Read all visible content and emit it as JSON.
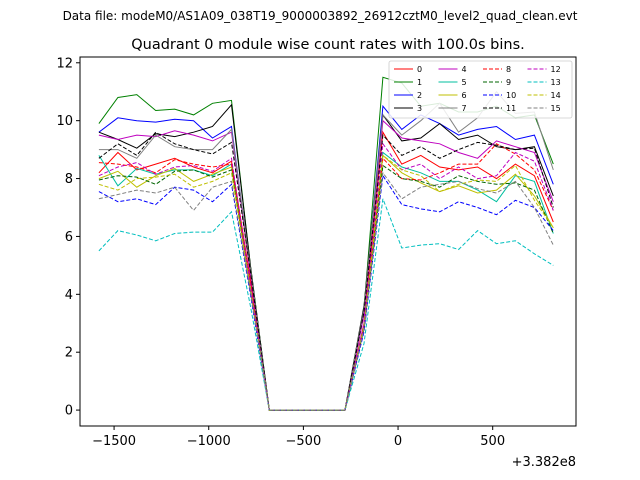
{
  "chart_data": {
    "type": "line",
    "header_text": "Data file: modeM0/AS1A09_038T19_9000003892_26912cztM0_level2_quad_clean.evt",
    "title": "Quadrant 0 module wise count rates with 100.0s bins.",
    "xlabel": "",
    "ylabel": "",
    "offset_text": "+3.382e8",
    "xlim": [
      -1680,
      940
    ],
    "ylim": [
      -0.55,
      12.2
    ],
    "xticks": [
      -1500,
      -1000,
      -500,
      0,
      500
    ],
    "xtick_labels": [
      "−1500",
      "−1000",
      "−500",
      "0",
      "500"
    ],
    "yticks": [
      0,
      2,
      4,
      6,
      8,
      10,
      12
    ],
    "ytick_labels": [
      "0",
      "2",
      "4",
      "6",
      "8",
      "10",
      "12"
    ],
    "legend_position": "upper right",
    "x": [
      -1580,
      -1480,
      -1380,
      -1280,
      -1180,
      -1080,
      -980,
      -880,
      -780,
      -680,
      -580,
      -480,
      -380,
      -280,
      -180,
      -80,
      20,
      120,
      220,
      320,
      420,
      520,
      620,
      720,
      820
    ],
    "series": [
      {
        "name": "0",
        "color": "#ff0000",
        "dash": "solid",
        "values": [
          8.2,
          8.9,
          8.3,
          8.5,
          8.7,
          8.4,
          8.2,
          8.6,
          4.5,
          0.0,
          0.0,
          0.0,
          0.0,
          0.0,
          3.0,
          9.6,
          8.5,
          8.8,
          8.4,
          8.3,
          8.4,
          8.0,
          8.5,
          8.1,
          6.5
        ]
      },
      {
        "name": "1",
        "color": "#008000",
        "dash": "solid",
        "values": [
          9.9,
          10.8,
          10.9,
          10.35,
          10.4,
          10.2,
          10.6,
          10.7,
          5.0,
          0.0,
          0.0,
          0.0,
          0.0,
          0.0,
          3.5,
          11.5,
          11.3,
          10.5,
          10.6,
          10.3,
          10.3,
          10.5,
          10.1,
          10.2,
          8.5
        ]
      },
      {
        "name": "2",
        "color": "#0000ff",
        "dash": "solid",
        "values": [
          9.6,
          10.1,
          10.0,
          9.95,
          10.05,
          10.0,
          9.4,
          9.8,
          4.8,
          0.0,
          0.0,
          0.0,
          0.0,
          0.0,
          3.4,
          10.5,
          9.7,
          10.2,
          9.9,
          9.5,
          9.7,
          9.8,
          9.35,
          9.5,
          7.8
        ]
      },
      {
        "name": "3",
        "color": "#000000",
        "dash": "solid",
        "values": [
          9.6,
          9.35,
          9.05,
          9.55,
          9.45,
          9.6,
          9.8,
          10.55,
          5.0,
          0.0,
          0.0,
          0.0,
          0.0,
          0.0,
          3.6,
          10.2,
          9.3,
          9.4,
          9.9,
          9.35,
          9.5,
          9.1,
          9.0,
          9.1,
          7.4
        ]
      },
      {
        "name": "4",
        "color": "#bf00bf",
        "dash": "solid",
        "values": [
          9.5,
          9.35,
          9.5,
          9.45,
          9.65,
          9.5,
          9.3,
          9.6,
          4.7,
          0.0,
          0.0,
          0.0,
          0.0,
          0.0,
          3.3,
          10.0,
          9.4,
          9.3,
          9.2,
          8.9,
          8.7,
          9.3,
          9.1,
          8.9,
          7.2
        ]
      },
      {
        "name": "5",
        "color": "#00bf9f",
        "dash": "solid",
        "values": [
          8.8,
          7.75,
          8.35,
          8.15,
          8.3,
          8.3,
          8.1,
          8.5,
          4.2,
          0.0,
          0.0,
          0.0,
          0.0,
          0.0,
          2.9,
          8.9,
          8.4,
          8.2,
          7.9,
          7.9,
          7.6,
          7.2,
          8.1,
          7.9,
          6.1
        ]
      },
      {
        "name": "6",
        "color": "#bfbf00",
        "dash": "solid",
        "values": [
          8.0,
          8.25,
          7.7,
          8.1,
          8.35,
          7.9,
          8.15,
          8.4,
          4.1,
          0.0,
          0.0,
          0.0,
          0.0,
          0.0,
          2.8,
          8.8,
          8.2,
          7.85,
          7.55,
          7.75,
          7.5,
          7.6,
          8.15,
          7.4,
          6.3
        ]
      },
      {
        "name": "7",
        "color": "#808080",
        "dash": "solid",
        "values": [
          9.0,
          9.0,
          8.7,
          9.5,
          9.1,
          9.0,
          9.0,
          9.7,
          4.9,
          0.0,
          0.0,
          0.0,
          0.0,
          0.0,
          3.5,
          10.2,
          9.5,
          10.0,
          10.6,
          9.6,
          10.1,
          11.0,
          10.25,
          10.3,
          8.3
        ]
      },
      {
        "name": "8",
        "color": "#ff0000",
        "dash": "dashed",
        "values": [
          8.55,
          8.5,
          8.4,
          8.2,
          8.65,
          8.5,
          8.4,
          8.5,
          4.3,
          0.0,
          0.0,
          0.0,
          0.0,
          0.0,
          2.9,
          8.7,
          8.0,
          7.95,
          8.2,
          8.5,
          8.5,
          9.2,
          8.85,
          8.3,
          6.9
        ]
      },
      {
        "name": "9",
        "color": "#006400",
        "dash": "dashed",
        "values": [
          7.95,
          8.1,
          8.05,
          7.8,
          8.25,
          8.3,
          8.05,
          8.3,
          4.2,
          0.0,
          0.0,
          0.0,
          0.0,
          0.0,
          2.8,
          8.45,
          8.0,
          7.9,
          7.7,
          8.1,
          7.9,
          7.8,
          7.85,
          7.6,
          6.1
        ]
      },
      {
        "name": "10",
        "color": "#0000ff",
        "dash": "dashed",
        "values": [
          7.55,
          7.2,
          7.3,
          7.1,
          7.7,
          7.6,
          7.2,
          7.8,
          4.0,
          0.0,
          0.0,
          0.0,
          0.0,
          0.0,
          2.7,
          8.1,
          7.1,
          6.95,
          6.85,
          7.2,
          7.0,
          6.75,
          7.25,
          7.0,
          6.2
        ]
      },
      {
        "name": "11",
        "color": "#000000",
        "dash": "dashed",
        "values": [
          8.7,
          9.2,
          8.8,
          9.6,
          9.2,
          9.0,
          8.85,
          9.25,
          4.8,
          0.0,
          0.0,
          0.0,
          0.0,
          0.0,
          3.4,
          9.5,
          8.8,
          9.1,
          8.7,
          9.0,
          9.25,
          9.15,
          9.0,
          9.05,
          7.0
        ]
      },
      {
        "name": "12",
        "color": "#bf00bf",
        "dash": "dashed",
        "values": [
          8.1,
          8.4,
          8.55,
          8.15,
          8.4,
          8.45,
          8.25,
          8.7,
          4.3,
          0.0,
          0.0,
          0.0,
          0.0,
          0.0,
          3.0,
          9.2,
          8.3,
          8.5,
          8.0,
          8.4,
          8.0,
          8.1,
          8.9,
          8.6,
          6.9
        ]
      },
      {
        "name": "13",
        "color": "#00bfbf",
        "dash": "dashed",
        "values": [
          5.5,
          6.2,
          6.05,
          5.85,
          6.1,
          6.15,
          6.15,
          6.85,
          3.6,
          0.0,
          0.0,
          0.0,
          0.0,
          0.0,
          2.3,
          7.3,
          5.6,
          5.7,
          5.75,
          5.55,
          6.2,
          5.75,
          5.85,
          5.4,
          5.0
        ]
      },
      {
        "name": "14",
        "color": "#bfbf00",
        "dash": "dashed",
        "values": [
          7.8,
          7.6,
          8.0,
          8.05,
          8.15,
          7.7,
          7.9,
          8.2,
          4.2,
          0.0,
          0.0,
          0.0,
          0.0,
          0.0,
          2.9,
          8.8,
          8.3,
          8.1,
          7.55,
          7.8,
          7.95,
          7.9,
          8.45,
          7.25,
          6.3
        ]
      },
      {
        "name": "15",
        "color": "#808080",
        "dash": "dashed",
        "values": [
          7.3,
          7.45,
          7.6,
          7.5,
          7.7,
          6.9,
          7.7,
          7.9,
          4.1,
          0.0,
          0.0,
          0.0,
          0.0,
          0.0,
          2.8,
          8.2,
          7.3,
          7.7,
          7.8,
          7.9,
          7.65,
          7.5,
          7.9,
          7.0,
          5.7
        ]
      }
    ]
  }
}
